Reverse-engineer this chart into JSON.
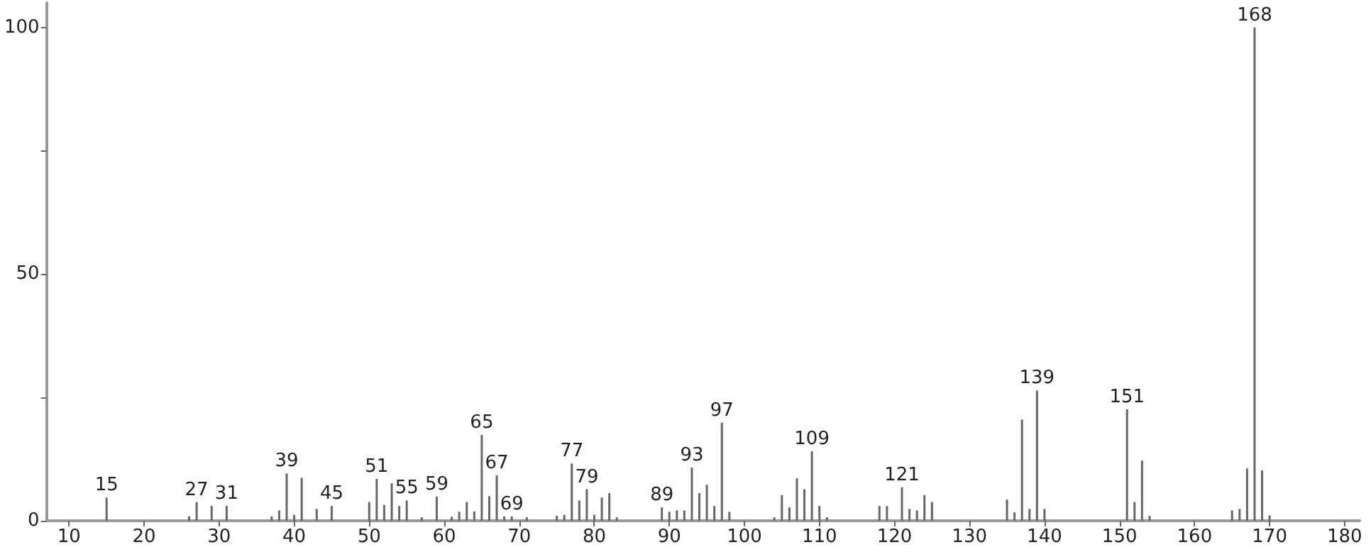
{
  "chart_data": {
    "type": "bar",
    "color": "#666666",
    "x": [
      15,
      26,
      27,
      28,
      29,
      31,
      37,
      38,
      39,
      40,
      41,
      42,
      43,
      44,
      45,
      46,
      50,
      51,
      52,
      53,
      54,
      55,
      56,
      57,
      59,
      61,
      62,
      63,
      64,
      65,
      66,
      67,
      68,
      69,
      71,
      75,
      76,
      77,
      78,
      79,
      80,
      81,
      82,
      83,
      89,
      90,
      91,
      92,
      93,
      94,
      95,
      96,
      97,
      98,
      104,
      105,
      106,
      107,
      108,
      109,
      110,
      111,
      118,
      119,
      121,
      122,
      123,
      124,
      125,
      126,
      135,
      136,
      137,
      138,
      139,
      140,
      151,
      152,
      153,
      154,
      165,
      166,
      167,
      168,
      169,
      170
    ],
    "values": [
      4.7,
      0.9,
      3.8,
      null,
      3.0,
      3.0,
      0.9,
      2.1,
      9.6,
      1.2,
      8.7,
      null,
      2.4,
      null,
      3.0,
      null,
      3.8,
      8.5,
      3.2,
      7.6,
      3.0,
      4.1,
      null,
      0.7,
      4.9,
      0.8,
      1.8,
      3.8,
      1.9,
      17.4,
      5.0,
      9.2,
      0.9,
      0.9,
      0.7,
      1.0,
      1.2,
      11.6,
      4.1,
      6.4,
      1.2,
      4.7,
      5.6,
      0.7,
      2.7,
      1.8,
      2.1,
      2.1,
      10.8,
      5.6,
      7.3,
      3.0,
      19.9,
      1.8,
      0.7,
      5.2,
      2.7,
      8.6,
      6.4,
      14.1,
      3.0,
      0.7,
      3.0,
      3.0,
      6.8,
      2.4,
      2.1,
      5.2,
      3.8,
      null,
      4.3,
      1.7,
      20.5,
      2.4,
      26.4,
      2.4,
      22.6,
      3.8,
      12.2,
      1.0,
      2.1,
      2.4,
      10.6,
      100,
      10.2,
      1.1
    ],
    "xlim": [
      7,
      182
    ],
    "xticks": [
      10,
      20,
      30,
      40,
      50,
      60,
      70,
      80,
      90,
      100,
      110,
      120,
      130,
      140,
      150,
      160,
      170,
      180
    ],
    "ylim": [
      0,
      105
    ],
    "yticks": [
      0,
      {
        "value": 25,
        "label": null
      },
      50,
      {
        "value": 75,
        "label": null
      },
      100
    ],
    "grid": false,
    "annotations": [
      {
        "text": "15",
        "x": 15,
        "y": 4.7
      },
      {
        "text": "27",
        "x": 27,
        "y": 3.8
      },
      {
        "text": "31",
        "x": 31,
        "y": 3.0
      },
      {
        "text": "39",
        "x": 39,
        "y": 9.6
      },
      {
        "text": "45",
        "x": 45,
        "y": 3.0
      },
      {
        "text": "51",
        "x": 51,
        "y": 8.5
      },
      {
        "text": "55",
        "x": 55,
        "y": 4.1
      },
      {
        "text": "59",
        "x": 59,
        "y": 4.9
      },
      {
        "text": "65",
        "x": 65,
        "y": 17.4
      },
      {
        "text": "67",
        "x": 67,
        "y": 9.2
      },
      {
        "text": "69",
        "x": 69,
        "y": 0.9
      },
      {
        "text": "77",
        "x": 77,
        "y": 11.6
      },
      {
        "text": "79",
        "x": 79,
        "y": 6.4
      },
      {
        "text": "89",
        "x": 89,
        "y": 2.7
      },
      {
        "text": "93",
        "x": 93,
        "y": 10.8
      },
      {
        "text": "97",
        "x": 97,
        "y": 19.9
      },
      {
        "text": "109",
        "x": 109,
        "y": 14.1
      },
      {
        "text": "121",
        "x": 121,
        "y": 6.8
      },
      {
        "text": "139",
        "x": 139,
        "y": 26.4
      },
      {
        "text": "151",
        "x": 151,
        "y": 22.6
      },
      {
        "text": "168",
        "x": 168,
        "y": 100
      }
    ]
  }
}
